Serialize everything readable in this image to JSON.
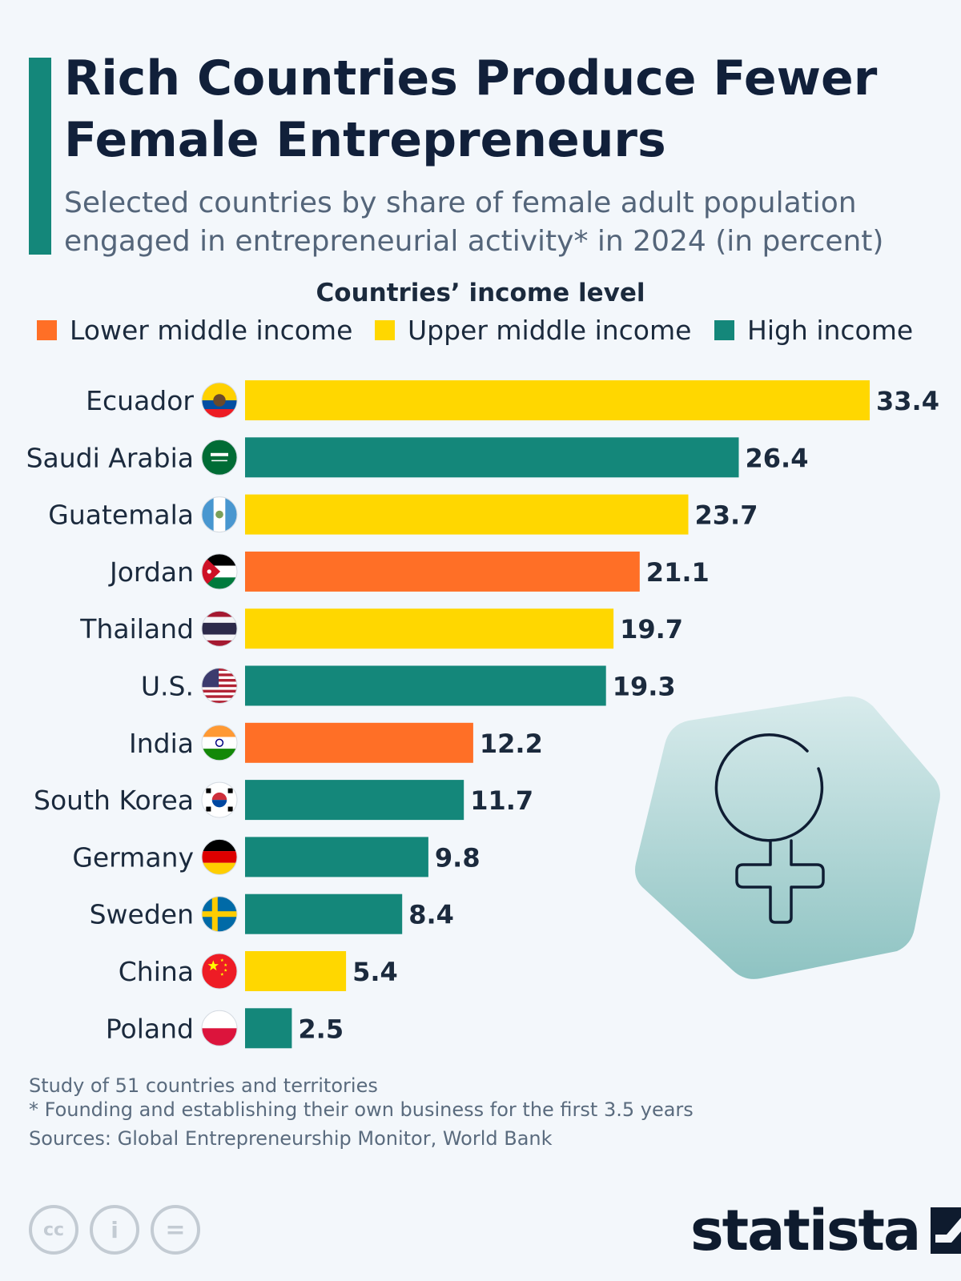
{
  "header": {
    "title": "Rich Countries Produce Fewer Female Entrepreneurs",
    "subtitle": "Selected countries by share of female adult population engaged in entrepreneurial activity* in 2024 (in percent)"
  },
  "legend": {
    "title": "Countries’ income level",
    "items": [
      {
        "label": "Lower middle income",
        "color": "#ff6f26"
      },
      {
        "label": "Upper middle income",
        "color": "#ffd700"
      },
      {
        "label": "High income",
        "color": "#14877a"
      }
    ]
  },
  "chart_data": {
    "type": "bar",
    "orientation": "horizontal",
    "title": "Rich Countries Produce Fewer Female Entrepreneurs",
    "categories": [
      "Ecuador",
      "Saudi Arabia",
      "Guatemala",
      "Jordan",
      "Thailand",
      "U.S.",
      "India",
      "South Korea",
      "Germany",
      "Sweden",
      "China",
      "Poland"
    ],
    "values": [
      33.4,
      26.4,
      23.7,
      21.1,
      19.7,
      19.3,
      12.2,
      11.7,
      9.8,
      8.4,
      5.4,
      2.5
    ],
    "value_labels": [
      "33.4",
      "26.4",
      "23.7",
      "21.1",
      "19.7",
      "19.3",
      "12.2",
      "11.7",
      "9.8",
      "8.4",
      "5.4",
      "2.5"
    ],
    "income_groups": [
      "Upper middle income",
      "High income",
      "Upper middle income",
      "Lower middle income",
      "Upper middle income",
      "High income",
      "Lower middle income",
      "High income",
      "High income",
      "High income",
      "Upper middle income",
      "High income"
    ],
    "flags": [
      "ecuador-flag-icon",
      "saudi-arabia-flag-icon",
      "guatemala-flag-icon",
      "jordan-flag-icon",
      "thailand-flag-icon",
      "us-flag-icon",
      "india-flag-icon",
      "south-korea-flag-icon",
      "germany-flag-icon",
      "sweden-flag-icon",
      "china-flag-icon",
      "poland-flag-icon"
    ],
    "xlim": [
      0,
      33.4
    ],
    "grid": false,
    "legend_position": "top"
  },
  "decoration": {
    "icon": "female-symbol-icon"
  },
  "footer": {
    "notes": [
      "Study of 51 countries and territories",
      "* Founding and establishing their own business for the first 3.5 years",
      "Sources: Global Entrepreneurship Monitor, World Bank"
    ],
    "license_icons": [
      "cc-icon",
      "attribution-icon",
      "no-derivatives-icon"
    ],
    "license_labels": [
      "cc",
      "i",
      "="
    ],
    "brand": "statista"
  }
}
